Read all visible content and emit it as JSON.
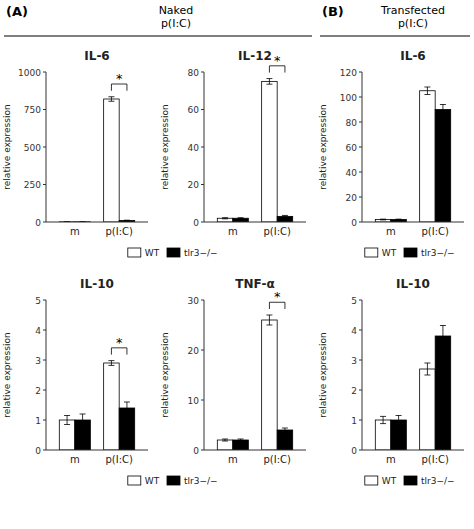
{
  "chart_data": [
    {
      "type": "bar",
      "title": "IL-6",
      "subtitle": "Naked\np(I:C)",
      "annotations": [
        {
          "text": "(A)"
        },
        {
          "text": "*",
          "category": 1
        }
      ],
      "ylabel": "relative expression",
      "categories": [
        "m",
        "p(I:C)"
      ],
      "series": [
        {
          "name": "WT",
          "color": "white",
          "values": [
            1,
            820
          ],
          "errors": [
            0.15,
            15
          ]
        },
        {
          "name": "tlr3−/−",
          "color": "black",
          "values": [
            1,
            10
          ],
          "errors": [
            0.15,
            2
          ]
        }
      ],
      "ylim": [
        0,
        1000
      ],
      "yticks": [
        0,
        250,
        500,
        750,
        1000
      ],
      "grid": false,
      "legend": "bottom"
    },
    {
      "type": "bar",
      "title": "IL-12",
      "annotations": [
        {
          "text": "*",
          "category": 1
        }
      ],
      "ylabel": "relative expression",
      "categories": [
        "m",
        "p(I:C)"
      ],
      "series": [
        {
          "name": "WT",
          "color": "white",
          "values": [
            2,
            75
          ],
          "errors": [
            0.3,
            1.5
          ]
        },
        {
          "name": "tlr3−/−",
          "color": "black",
          "values": [
            2,
            3
          ],
          "errors": [
            0.3,
            0.5
          ]
        }
      ],
      "ylim": [
        0,
        80
      ],
      "yticks": [
        0,
        20,
        40,
        60,
        80
      ],
      "grid": false
    },
    {
      "type": "bar",
      "title": "IL-6",
      "subtitle": "Transfected\np(I:C)",
      "annotations": [
        {
          "text": "(B)"
        }
      ],
      "ylabel": "relative expression",
      "categories": [
        "m",
        "p(I:C)"
      ],
      "series": [
        {
          "name": "WT",
          "color": "white",
          "values": [
            2,
            105
          ],
          "errors": [
            0.3,
            3
          ]
        },
        {
          "name": "tlr3−/−",
          "color": "black",
          "values": [
            2,
            90
          ],
          "errors": [
            0.3,
            4
          ]
        }
      ],
      "ylim": [
        0,
        120
      ],
      "yticks": [
        0,
        20,
        40,
        60,
        80,
        100,
        120
      ],
      "grid": false,
      "legend": "bottom"
    },
    {
      "type": "bar",
      "title": "IL-10",
      "annotations": [
        {
          "text": "*",
          "category": 1
        }
      ],
      "ylabel": "relative expression",
      "categories": [
        "m",
        "p(I:C)"
      ],
      "series": [
        {
          "name": "WT",
          "color": "white",
          "values": [
            1.0,
            2.9
          ],
          "errors": [
            0.15,
            0.08
          ]
        },
        {
          "name": "tlr3−/−",
          "color": "black",
          "values": [
            1.0,
            1.4
          ],
          "errors": [
            0.2,
            0.2
          ]
        }
      ],
      "ylim": [
        0,
        5
      ],
      "yticks": [
        0,
        1,
        2,
        3,
        4,
        5
      ],
      "grid": false,
      "legend": "bottom"
    },
    {
      "type": "bar",
      "title": "TNF-α",
      "annotations": [
        {
          "text": "*",
          "category": 1
        }
      ],
      "ylabel": "relative expression",
      "categories": [
        "m",
        "p(I:C)"
      ],
      "series": [
        {
          "name": "WT",
          "color": "white",
          "values": [
            2.0,
            26
          ],
          "errors": [
            0.2,
            1.0
          ]
        },
        {
          "name": "tlr3−/−",
          "color": "black",
          "values": [
            2.0,
            4.0
          ],
          "errors": [
            0.2,
            0.4
          ]
        }
      ],
      "ylim": [
        0,
        30
      ],
      "yticks": [
        0,
        10,
        20,
        30
      ],
      "grid": false
    },
    {
      "type": "bar",
      "title": "IL-10",
      "ylabel": "relative expression",
      "categories": [
        "m",
        "p(I:C)"
      ],
      "series": [
        {
          "name": "WT",
          "color": "white",
          "values": [
            1.0,
            2.7
          ],
          "errors": [
            0.12,
            0.2
          ]
        },
        {
          "name": "tlr3−/−",
          "color": "black",
          "values": [
            1.0,
            3.8
          ],
          "errors": [
            0.15,
            0.35
          ]
        }
      ],
      "ylim": [
        0,
        5
      ],
      "yticks": [
        0,
        1,
        2,
        3,
        4,
        5
      ],
      "grid": false,
      "legend": "bottom"
    }
  ]
}
